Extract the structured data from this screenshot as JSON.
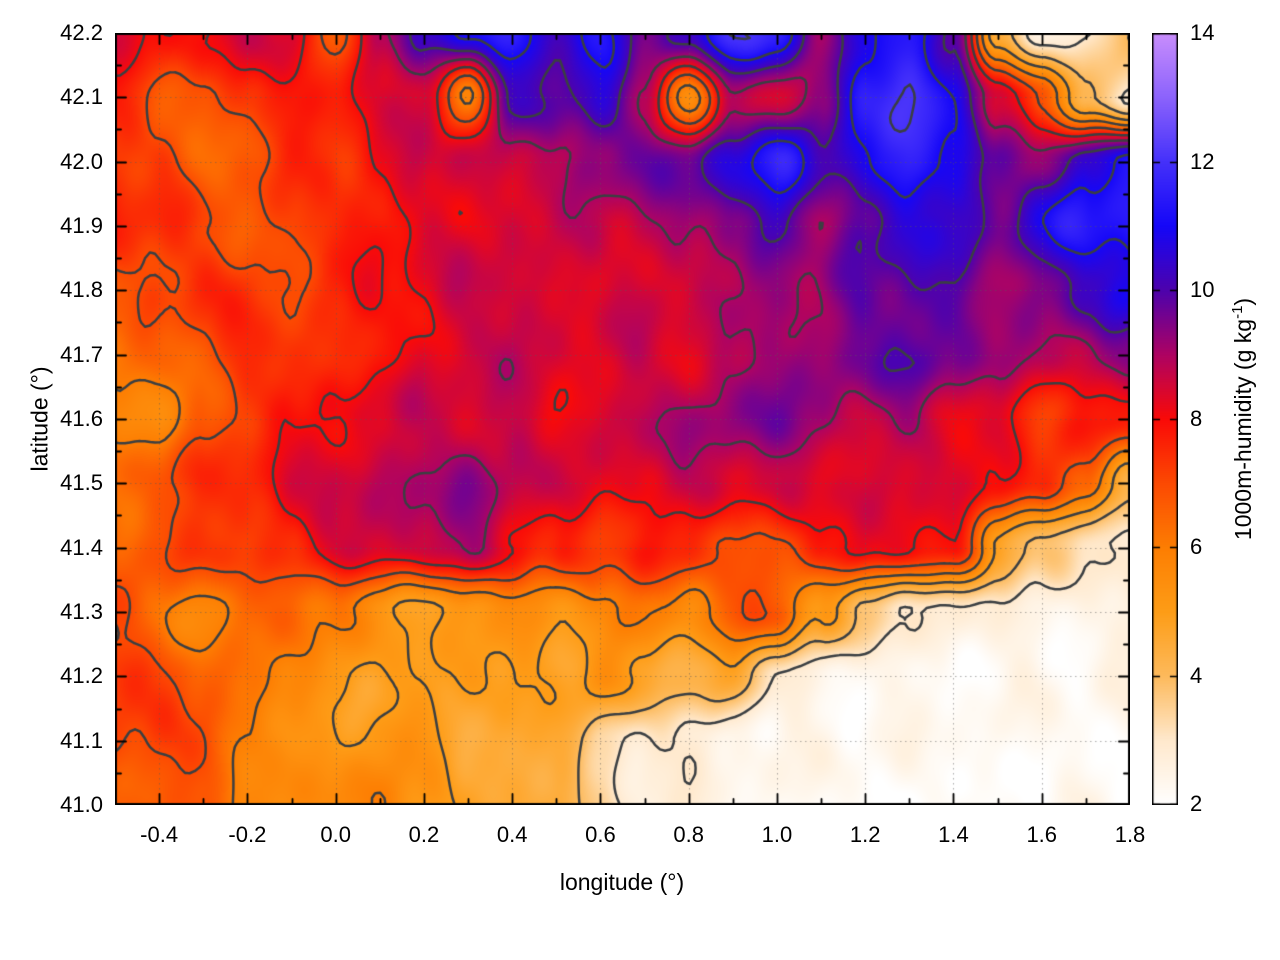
{
  "figure": {
    "xlabel": "longitude (°)",
    "ylabel": "latitude (°)",
    "colorbar_label_prefix": "1000m-humidity (g kg",
    "colorbar_label_sup": "-1",
    "colorbar_label_suffix": ")",
    "background": "#ffffff"
  },
  "chart_data": {
    "type": "heatmap",
    "title": "",
    "xlabel": "longitude (°)",
    "ylabel": "latitude (°)",
    "colorbar_label": "1000m-humidity (g kg-1)",
    "x_range": [
      -0.5,
      1.8
    ],
    "y_range": [
      41.0,
      42.2
    ],
    "z_range": [
      2,
      14
    ],
    "grid_on": true,
    "legend_position": "colorbar-right",
    "x_ticks": [
      -0.4,
      -0.2,
      0.0,
      0.2,
      0.4,
      0.6,
      0.8,
      1.0,
      1.2,
      1.4,
      1.6,
      1.8
    ],
    "x_tick_labels": [
      "-0.4",
      "-0.2",
      "0.0",
      "0.2",
      "0.4",
      "0.6",
      "0.8",
      "1.0",
      "1.2",
      "1.4",
      "1.6",
      "1.8"
    ],
    "x_minor_tick_step": 0.1,
    "y_ticks": [
      41.0,
      41.1,
      41.2,
      41.3,
      41.4,
      41.5,
      41.6,
      41.7,
      41.8,
      41.9,
      42.0,
      42.1,
      42.2
    ],
    "y_tick_labels": [
      "41.0",
      "41.1",
      "41.2",
      "41.3",
      "41.4",
      "41.5",
      "41.6",
      "41.7",
      "41.8",
      "41.9",
      "42.0",
      "42.1",
      "42.2"
    ],
    "y_minor_tick_step": 0.05,
    "cb_ticks": [
      2,
      4,
      6,
      8,
      10,
      12,
      14
    ],
    "cb_tick_labels": [
      "2",
      "4",
      "6",
      "8",
      "10",
      "12",
      "14"
    ],
    "contour_levels": [
      3,
      4,
      5,
      6,
      7,
      8,
      9,
      10,
      11,
      12
    ],
    "contour_color": "#3b3f42",
    "grid_color": "rgba(90,90,90,0.5)",
    "frame_color": "#000000",
    "palette": [
      {
        "v": 2,
        "color": "#ffffff"
      },
      {
        "v": 3,
        "color": "#ffe9cd"
      },
      {
        "v": 4,
        "color": "#fdba5c"
      },
      {
        "v": 5,
        "color": "#fe9d17"
      },
      {
        "v": 6,
        "color": "#fd7e02"
      },
      {
        "v": 7,
        "color": "#fc4a02"
      },
      {
        "v": 8,
        "color": "#fa0a08"
      },
      {
        "v": 9,
        "color": "#ae0363"
      },
      {
        "v": 10,
        "color": "#4e02ad"
      },
      {
        "v": 11,
        "color": "#1507f8"
      },
      {
        "v": 12,
        "color": "#4531fa"
      },
      {
        "v": 13,
        "color": "#8c63fc"
      },
      {
        "v": 14,
        "color": "#c98efc"
      }
    ],
    "grid_lon": [
      -0.5,
      -0.4,
      -0.3,
      -0.2,
      -0.1,
      0.0,
      0.1,
      0.2,
      0.3,
      0.4,
      0.5,
      0.6,
      0.7,
      0.8,
      0.9,
      1.0,
      1.1,
      1.2,
      1.3,
      1.4,
      1.5,
      1.6,
      1.7,
      1.8
    ],
    "grid_lat": [
      42.2,
      42.1,
      42.0,
      41.9,
      41.8,
      41.7,
      41.6,
      41.5,
      41.4,
      41.3,
      41.2,
      41.1,
      41.0
    ],
    "values": [
      [
        8.4,
        8.2,
        8.1,
        8.4,
        8.6,
        6.2,
        8.8,
        10.3,
        11.2,
        11.6,
        10.6,
        11.4,
        9.6,
        10.6,
        11.6,
        11.9,
        8.8,
        10.8,
        11.5,
        10.0,
        4.5,
        2.8,
        3.0,
        3.8
      ],
      [
        7.4,
        6.6,
        6.8,
        7.4,
        7.8,
        8.1,
        8.4,
        8.6,
        6.0,
        9.8,
        10.0,
        10.3,
        8.8,
        5.5,
        9.0,
        8.4,
        9.6,
        11.6,
        11.9,
        11.2,
        8.0,
        7.0,
        4.0,
        2.8
      ],
      [
        7.6,
        7.2,
        6.4,
        6.8,
        7.3,
        7.3,
        7.9,
        8.5,
        8.8,
        8.7,
        8.9,
        9.6,
        9.8,
        9.6,
        10.8,
        11.4,
        10.2,
        10.8,
        11.6,
        11.0,
        10.0,
        9.2,
        10.6,
        11.3
      ],
      [
        7.8,
        7.4,
        7.0,
        6.8,
        7.2,
        7.6,
        8.0,
        8.3,
        8.0,
        8.5,
        8.4,
        8.6,
        8.8,
        9.0,
        9.6,
        10.4,
        9.0,
        10.0,
        10.6,
        10.2,
        9.6,
        10.8,
        11.4,
        11.6
      ],
      [
        6.8,
        7.2,
        7.6,
        7.2,
        6.9,
        7.4,
        7.9,
        8.3,
        8.7,
        8.8,
        8.5,
        8.4,
        8.6,
        8.5,
        8.7,
        9.2,
        9.0,
        9.7,
        10.1,
        9.9,
        9.2,
        9.6,
        10.2,
        10.8
      ],
      [
        6.0,
        6.4,
        6.9,
        7.4,
        7.7,
        7.5,
        7.8,
        8.2,
        8.5,
        8.6,
        8.4,
        8.3,
        8.5,
        8.6,
        8.8,
        9.4,
        9.3,
        9.7,
        9.9,
        9.6,
        9.0,
        8.8,
        9.0,
        9.2
      ],
      [
        5.8,
        5.6,
        6.6,
        7.2,
        7.6,
        8.0,
        8.4,
        8.6,
        8.8,
        8.6,
        8.3,
        8.5,
        8.8,
        9.0,
        9.3,
        9.5,
        9.0,
        8.8,
        8.9,
        8.6,
        8.3,
        7.2,
        7.9,
        7.6
      ],
      [
        6.4,
        6.8,
        7.4,
        7.9,
        8.4,
        8.8,
        8.9,
        9.0,
        9.3,
        8.8,
        8.4,
        8.2,
        8.4,
        8.6,
        8.8,
        8.6,
        8.4,
        8.5,
        8.3,
        8.2,
        8.0,
        7.4,
        6.4,
        4.6
      ],
      [
        6.6,
        7.0,
        7.3,
        7.0,
        7.5,
        8.2,
        8.5,
        8.8,
        9.0,
        8.4,
        7.6,
        7.2,
        7.8,
        7.4,
        6.6,
        6.9,
        7.6,
        8.2,
        8.4,
        7.8,
        5.2,
        3.8,
        3.0,
        2.8
      ],
      [
        6.8,
        6.2,
        5.8,
        6.4,
        6.8,
        6.2,
        5.2,
        4.8,
        5.0,
        5.4,
        5.2,
        5.6,
        6.2,
        5.8,
        6.8,
        7.0,
        5.2,
        3.6,
        2.9,
        2.7,
        2.6,
        2.5,
        2.5,
        2.6
      ],
      [
        7.4,
        7.0,
        6.6,
        6.0,
        5.6,
        5.2,
        4.8,
        5.0,
        5.4,
        5.0,
        4.8,
        5.6,
        4.4,
        4.2,
        4.6,
        2.8,
        2.5,
        2.4,
        2.4,
        2.3,
        2.3,
        2.3,
        2.3,
        2.4
      ],
      [
        7.0,
        7.3,
        7.0,
        6.2,
        5.4,
        5.0,
        5.4,
        5.0,
        4.4,
        4.4,
        4.6,
        3.4,
        3.1,
        2.9,
        2.6,
        2.4,
        2.3,
        2.3,
        2.2,
        2.2,
        2.2,
        2.2,
        2.2,
        2.3
      ],
      [
        6.6,
        6.9,
        6.4,
        5.8,
        5.4,
        5.6,
        6.0,
        5.4,
        4.8,
        4.8,
        4.6,
        3.2,
        2.8,
        2.5,
        2.3,
        2.2,
        2.2,
        2.2,
        2.2,
        2.2,
        2.2,
        2.2,
        2.2,
        2.2
      ]
    ]
  }
}
